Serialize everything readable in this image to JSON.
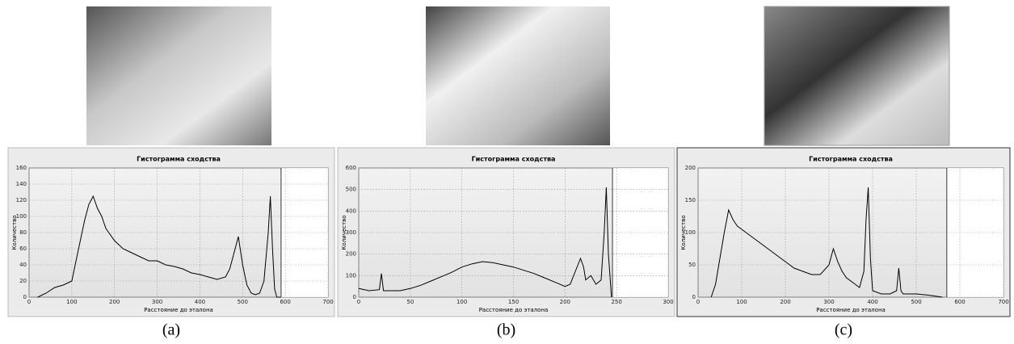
{
  "chart_data": [
    {
      "type": "line",
      "title": "Гистограмма сходства",
      "xlabel": "Расстояние до эталона",
      "ylabel": "Количество",
      "caption": "(a)",
      "x": [
        20,
        40,
        60,
        80,
        100,
        110,
        120,
        130,
        140,
        150,
        160,
        170,
        180,
        200,
        220,
        240,
        260,
        280,
        300,
        320,
        340,
        360,
        380,
        400,
        420,
        440,
        460,
        470,
        480,
        490,
        500,
        510,
        520,
        530,
        540,
        550,
        560,
        565,
        570,
        575,
        580,
        590
      ],
      "values": [
        0,
        5,
        12,
        15,
        20,
        45,
        70,
        95,
        115,
        125,
        110,
        100,
        85,
        70,
        60,
        55,
        50,
        45,
        45,
        40,
        38,
        35,
        30,
        28,
        25,
        22,
        25,
        35,
        55,
        75,
        40,
        15,
        5,
        3,
        5,
        20,
        80,
        125,
        60,
        10,
        0,
        0
      ],
      "color": "#000000",
      "xlim": [
        0,
        700
      ],
      "ylim": [
        0,
        160
      ],
      "xticks": [
        0,
        100,
        200,
        300,
        400,
        500,
        600,
        700
      ],
      "yticks": [
        0,
        20,
        40,
        60,
        80,
        100,
        120,
        140,
        160
      ],
      "threshold": 590,
      "grid": true
    },
    {
      "type": "line",
      "title": "Гистограмма сходства",
      "xlabel": "Расстояние до эталона",
      "ylabel": "Количество",
      "caption": "(b)",
      "x": [
        0,
        10,
        20,
        22,
        24,
        30,
        40,
        50,
        60,
        70,
        80,
        90,
        100,
        110,
        120,
        130,
        140,
        150,
        160,
        170,
        180,
        190,
        200,
        205,
        210,
        215,
        218,
        220,
        225,
        230,
        235,
        238,
        240,
        242,
        245
      ],
      "values": [
        40,
        30,
        35,
        110,
        30,
        30,
        30,
        40,
        55,
        75,
        95,
        115,
        140,
        155,
        165,
        160,
        150,
        140,
        125,
        110,
        90,
        70,
        50,
        60,
        120,
        180,
        140,
        80,
        100,
        60,
        80,
        300,
        510,
        200,
        0
      ],
      "color": "#000000",
      "xlim": [
        0,
        300
      ],
      "ylim": [
        0,
        600
      ],
      "xticks": [
        0,
        50,
        100,
        150,
        200,
        250,
        300
      ],
      "yticks": [
        0,
        100,
        200,
        300,
        400,
        500,
        600
      ],
      "threshold": 246,
      "grid": true
    },
    {
      "type": "line",
      "title": "Гистограмма сходства",
      "xlabel": "Расстояние до эталона",
      "ylabel": "Количество",
      "caption": "(c)",
      "x": [
        30,
        40,
        50,
        60,
        70,
        80,
        90,
        100,
        120,
        140,
        160,
        180,
        200,
        220,
        240,
        260,
        280,
        300,
        310,
        320,
        330,
        340,
        360,
        370,
        380,
        385,
        390,
        395,
        400,
        420,
        440,
        455,
        460,
        465,
        470,
        500,
        530,
        560
      ],
      "values": [
        0,
        20,
        60,
        100,
        135,
        120,
        110,
        105,
        95,
        85,
        75,
        65,
        55,
        45,
        40,
        35,
        35,
        50,
        75,
        55,
        40,
        30,
        20,
        15,
        40,
        120,
        170,
        60,
        10,
        5,
        5,
        10,
        45,
        10,
        5,
        5,
        3,
        0
      ],
      "color": "#000000",
      "xlim": [
        0,
        700
      ],
      "ylim": [
        0,
        200
      ],
      "xticks": [
        0,
        100,
        200,
        300,
        400,
        500,
        600,
        700
      ],
      "yticks": [
        0,
        50,
        100,
        150,
        200
      ],
      "threshold": 570,
      "grid": true
    }
  ]
}
